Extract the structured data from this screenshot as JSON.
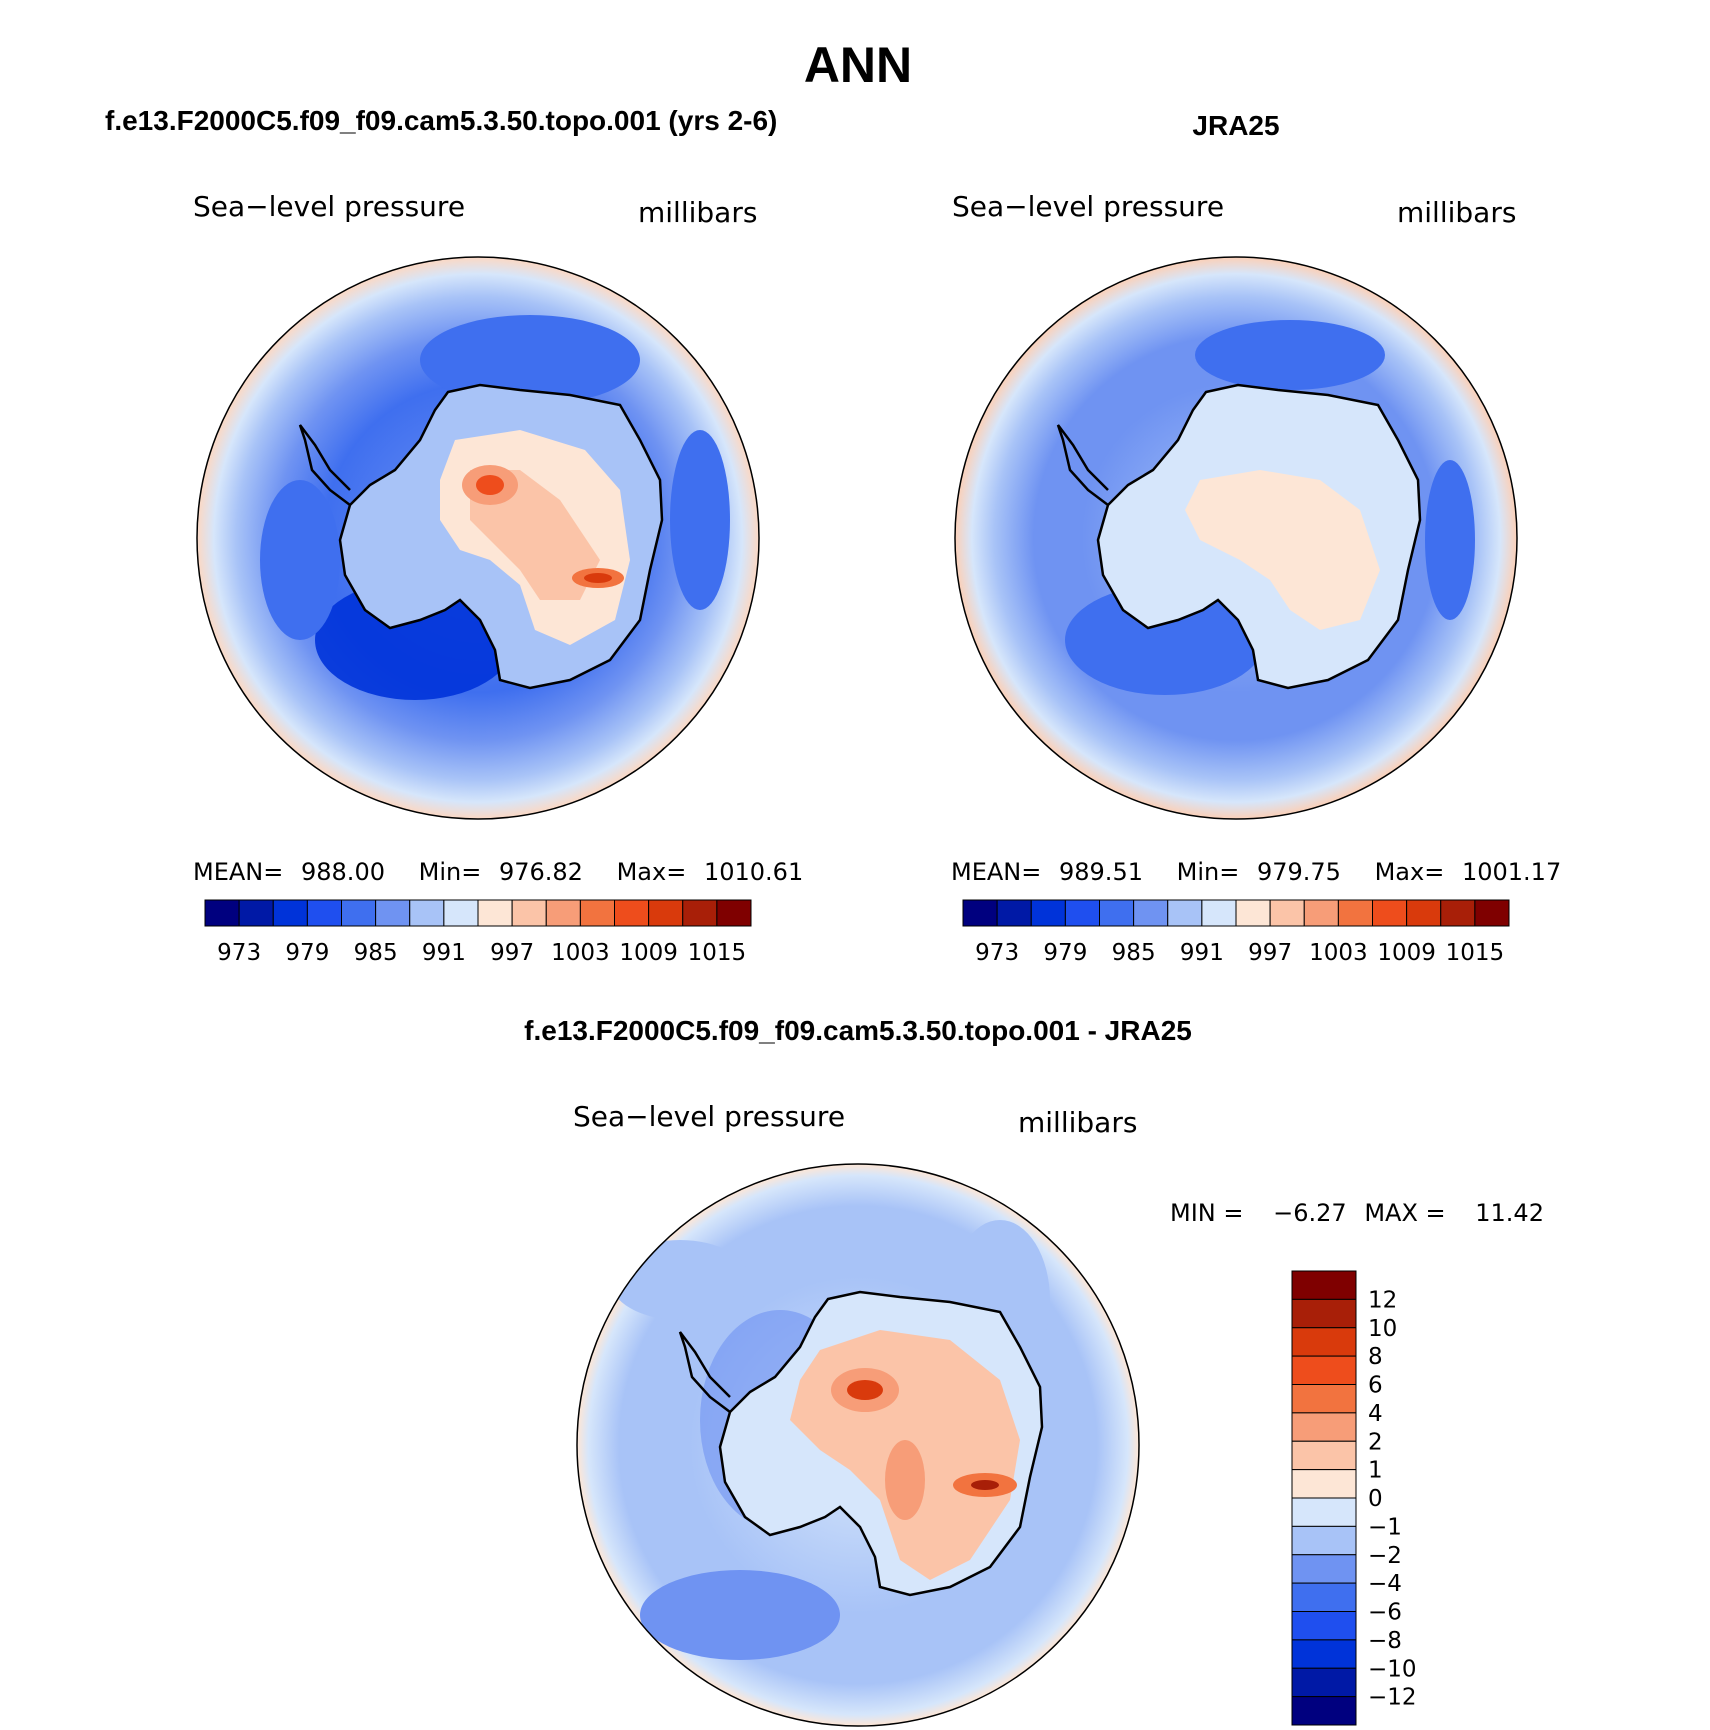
{
  "figure": {
    "title": "ANN"
  },
  "panels": [
    {
      "id": "model",
      "case_title": "f.e13.F2000C5.f09_f09.cam5.3.50.topo.001 (yrs 2-6)",
      "variable": "Sea−level pressure",
      "units": "millibars",
      "stats": {
        "mean_label": "MEAN=",
        "mean": "988.00",
        "min_label": "Min=",
        "min": "976.82",
        "max_label": "Max=",
        "max": "1010.61"
      },
      "colorbar_labels": [
        "973",
        "979",
        "985",
        "991",
        "997",
        "1003",
        "1009",
        "1015"
      ]
    },
    {
      "id": "obs",
      "case_title": "JRA25",
      "variable": "Sea−level pressure",
      "units": "millibars",
      "stats": {
        "mean_label": "MEAN=",
        "mean": "989.51",
        "min_label": "Min=",
        "min": "979.75",
        "max_label": "Max=",
        "max": "1001.17"
      },
      "colorbar_labels": [
        "973",
        "979",
        "985",
        "991",
        "997",
        "1003",
        "1009",
        "1015"
      ]
    },
    {
      "id": "diff",
      "case_title": "f.e13.F2000C5.f09_f09.cam5.3.50.topo.001 - JRA25",
      "variable": "Sea−level pressure",
      "units": "millibars",
      "stats": {
        "min_label": "MIN =",
        "min": "−6.27",
        "max_label": "MAX =",
        "max": "11.42"
      },
      "colorbar_labels": [
        "12",
        "10",
        "8",
        "6",
        "4",
        "2",
        "1",
        "0",
        "−1",
        "−2",
        "−4",
        "−6",
        "−8",
        "−10",
        "−12"
      ]
    }
  ],
  "colors": {
    "abs_scale": [
      "#00007f",
      "#0019a6",
      "#0033d9",
      "#1f4fef",
      "#3f6fef",
      "#6f93f2",
      "#a8c3f7",
      "#d6e6fb",
      "#fde6d6",
      "#fbc4a8",
      "#f79d78",
      "#f2733f",
      "#ee4d1c",
      "#d93a0c",
      "#a81f08",
      "#7f0000"
    ],
    "diff_scale": [
      "#00007f",
      "#0019a6",
      "#0033d9",
      "#1f4fef",
      "#3f6fef",
      "#6f93f2",
      "#a8c3f7",
      "#d6e6fb",
      "#fde6d6",
      "#fbc4a8",
      "#f79d78",
      "#f2733f",
      "#ee4d1c",
      "#d93a0c",
      "#a81f08",
      "#7f0000"
    ],
    "coastline": "#000000"
  }
}
